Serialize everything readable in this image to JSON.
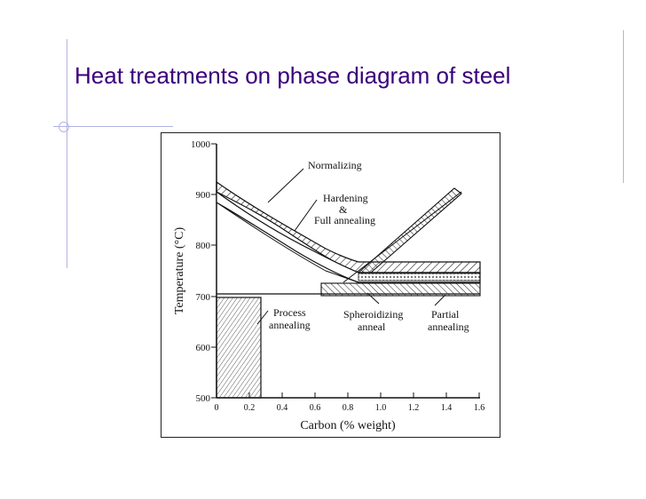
{
  "slide": {
    "title": "Heat treatments on phase diagram of steel"
  },
  "figure": {
    "ylabel": "Temperature (°C)",
    "xlabel": "Carbon (% weight)",
    "x_ticks": [
      "0",
      "0.2",
      "0.4",
      "0.6",
      "0.8",
      "1.0",
      "1.2",
      "1.4",
      "1.6"
    ],
    "y_ticks": [
      "500",
      "600",
      "700",
      "800",
      "900",
      "1000"
    ],
    "labels": {
      "normalizing": "Normalizing",
      "hardening": "Hardening",
      "amp": "&",
      "full_annealing": "Full annealing",
      "process_1": "Process",
      "process_2": "annealing",
      "spheroid_1": "Spheroidizing",
      "spheroid_2": "anneal",
      "partial_1": "Partial",
      "partial_2": "annealing"
    }
  }
}
